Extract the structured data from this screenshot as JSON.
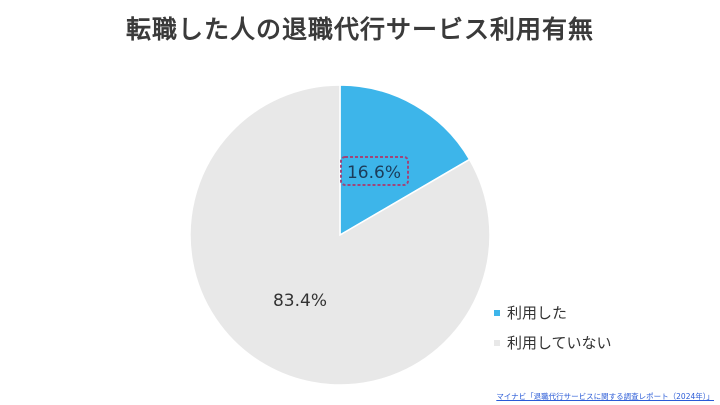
{
  "chart_data": {
    "type": "pie",
    "title": "転職した人の退職代行サービス利用有無",
    "slices": [
      {
        "label": "利用した",
        "value": 16.6,
        "display": "16.6%",
        "color": "#3db5ea"
      },
      {
        "label": "利用していない",
        "value": 83.4,
        "display": "83.4%",
        "color": "#e8e8e8"
      }
    ],
    "legend_position": "right",
    "highlight_color": "#a0457a"
  },
  "source": "マイナビ「退職代行サービスに関する調査レポート（2024年）」"
}
